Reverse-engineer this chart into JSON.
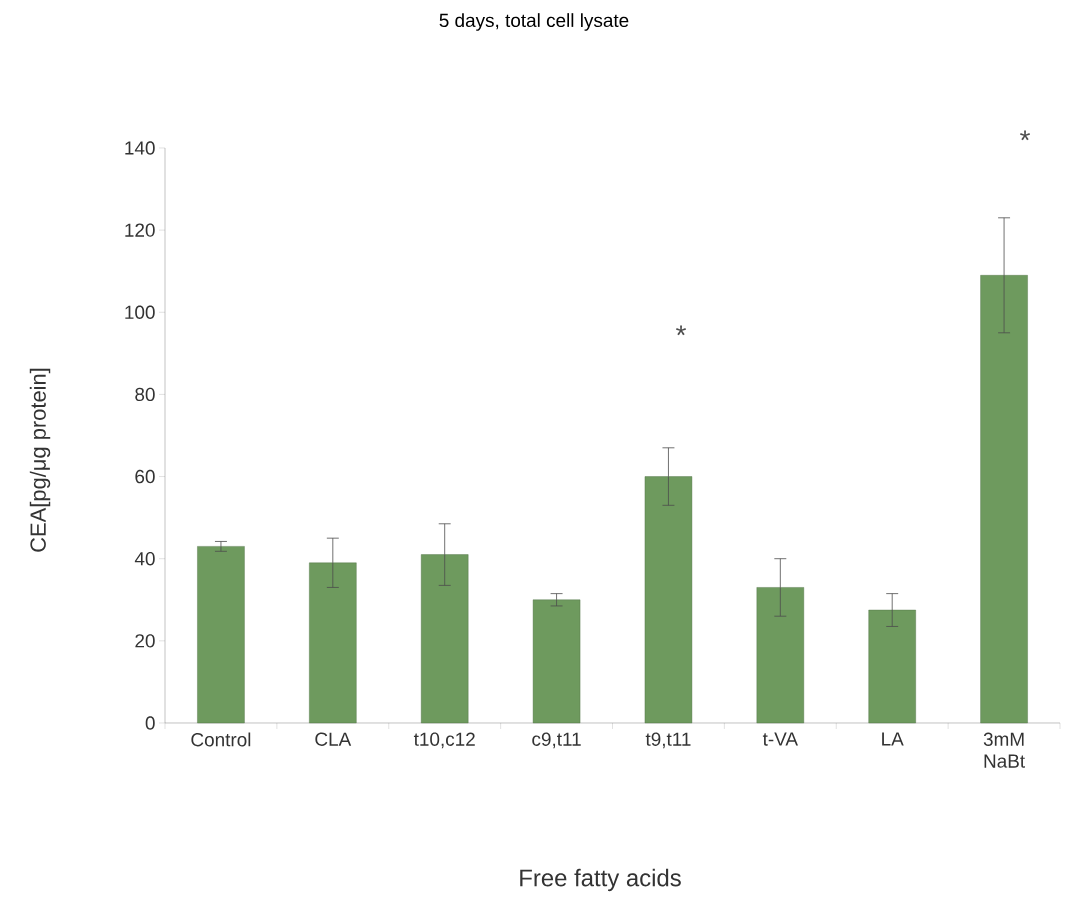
{
  "chart_data": {
    "type": "bar",
    "title": "5 days, total cell lysate",
    "xlabel": "Free fatty acids",
    "ylabel": "CEA[pg/μg protein]",
    "categories": [
      "Control",
      "CLA",
      "t10,c12",
      "c9,t11",
      "t9,t11",
      "t-VA",
      "LA",
      "3mM NaBt"
    ],
    "values": [
      43,
      39,
      41,
      30,
      60,
      33,
      27.5,
      109
    ],
    "errors": [
      1.2,
      6,
      7.5,
      1.5,
      7,
      7,
      4,
      14
    ],
    "color": "#6e9a5e",
    "ylim": [
      0,
      140
    ],
    "yticks": [
      0,
      20,
      40,
      60,
      80,
      100,
      120,
      140
    ],
    "annotations": [
      "*",
      "*"
    ]
  }
}
